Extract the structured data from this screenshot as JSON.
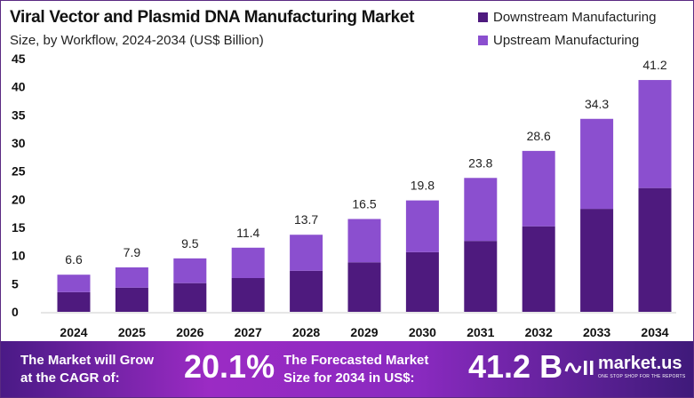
{
  "chart_data": {
    "type": "bar",
    "stacked": true,
    "title": "Viral Vector and Plasmid DNA Manufacturing Market",
    "subtitle": "Size, by Workflow, 2024-2034 (US$ Billion)",
    "categories": [
      "2024",
      "2025",
      "2026",
      "2027",
      "2028",
      "2029",
      "2030",
      "2031",
      "2032",
      "2033",
      "2034"
    ],
    "totals": [
      "6.6",
      "7.9",
      "9.5",
      "11.4",
      "13.7",
      "16.5",
      "19.8",
      "23.8",
      "28.6",
      "34.3",
      "41.2"
    ],
    "series": [
      {
        "name": "Downstream Manufacturing",
        "color": "#4e1a7e",
        "values": [
          3.5,
          4.3,
          5.1,
          6.0,
          7.3,
          8.8,
          10.6,
          12.6,
          15.2,
          18.3,
          22.0
        ]
      },
      {
        "name": "Upstream Manufacturing",
        "color": "#8b4fcf",
        "values": [
          3.1,
          3.6,
          4.4,
          5.4,
          6.4,
          7.7,
          9.2,
          11.2,
          13.4,
          16.0,
          19.2
        ]
      }
    ],
    "ylim": [
      0,
      45
    ],
    "yticks": [
      "0",
      "5",
      "10",
      "15",
      "20",
      "25",
      "30",
      "35",
      "40",
      "45"
    ],
    "grid": false,
    "legend": "top-right"
  },
  "banner": {
    "cagr_text_1": "The Market will Grow",
    "cagr_text_2": "at the CAGR of:",
    "cagr_value": "20.1%",
    "forecast_text_1": "The Forecasted Market",
    "forecast_text_2": "Size for 2034 in US$:",
    "forecast_value": "41.2 B",
    "logo_name": "market.us",
    "logo_tagline": "ONE STOP SHOP FOR THE REPORTS"
  }
}
